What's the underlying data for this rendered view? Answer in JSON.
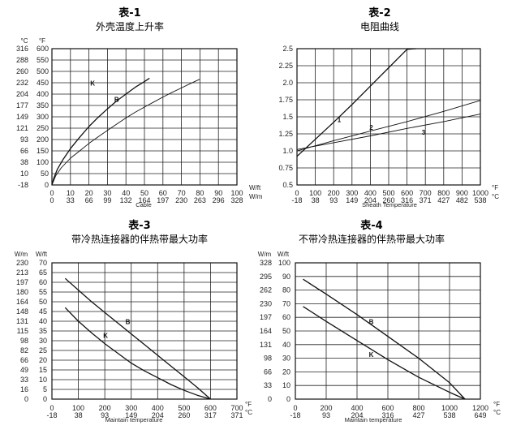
{
  "chart_data": [
    {
      "type": "line",
      "title": "表-1",
      "subtitle": "外壳温度上升率",
      "y_unit_left": "°C",
      "y_unit_right": "°F",
      "y_ticks_left": [
        "316",
        "288",
        "260",
        "232",
        "204",
        "177",
        "149",
        "121",
        "93",
        "66",
        "38",
        "10",
        "-18"
      ],
      "y_ticks_right": [
        "600",
        "550",
        "500",
        "450",
        "400",
        "350",
        "300",
        "250",
        "200",
        "150",
        "100",
        "50",
        "0"
      ],
      "ylim": [
        0,
        600
      ],
      "x_unit_top": "W/ft",
      "x_unit_bottom": "W/m",
      "x_ticks_top": [
        "0",
        "10",
        "20",
        "30",
        "40",
        "50",
        "60",
        "70",
        "80",
        "90",
        "100"
      ],
      "x_ticks_bottom": [
        "0",
        "33",
        "66",
        "99",
        "132",
        "164",
        "197",
        "230",
        "263",
        "296",
        "328"
      ],
      "xlim": [
        0,
        100
      ],
      "xlabel": "Cable",
      "series": [
        {
          "name": "K",
          "x": [
            0,
            1,
            3,
            6,
            10,
            15,
            20,
            25,
            30,
            35,
            40,
            45,
            50,
            52.7
          ],
          "y": [
            0,
            30,
            70,
            112,
            160,
            210,
            257,
            298,
            335,
            370,
            400,
            430,
            455,
            470
          ]
        },
        {
          "name": "B",
          "x": [
            0,
            2,
            5,
            10,
            15,
            20,
            25,
            30,
            35,
            40,
            45,
            50,
            55,
            60,
            65,
            70,
            75,
            79.8
          ],
          "y": [
            0,
            40,
            75,
            118,
            150,
            183,
            212,
            240,
            268,
            295,
            320,
            343,
            365,
            387,
            408,
            427,
            447,
            465
          ]
        }
      ]
    },
    {
      "type": "line",
      "title": "表-2",
      "subtitle": "电阻曲线",
      "y_ticks": [
        "2.5",
        "2.25",
        "2.0",
        "1.75",
        "1.5",
        "1.25",
        "1.0",
        "0.75",
        "0.5"
      ],
      "ylim": [
        0.5,
        2.5
      ],
      "x_unit_top": "°F",
      "x_unit_bottom": "°C",
      "x_ticks_top": [
        "0",
        "100",
        "200",
        "300",
        "400",
        "500",
        "600",
        "700",
        "800",
        "900",
        "1000"
      ],
      "x_ticks_bottom": [
        "-18",
        "38",
        "93",
        "149",
        "204",
        "260",
        "316",
        "371",
        "427",
        "482",
        "538"
      ],
      "xlim": [
        0,
        1000
      ],
      "xlabel": "Sheath Temperature",
      "series": [
        {
          "name": "1",
          "x": [
            0,
            100,
            200,
            300,
            400,
            500,
            600,
            650
          ],
          "y": [
            0.92,
            1.17,
            1.42,
            1.68,
            1.95,
            2.22,
            2.49,
            2.5
          ]
        },
        {
          "name": "2",
          "x": [
            0,
            200,
            400,
            600,
            800,
            1000
          ],
          "y": [
            1.0,
            1.15,
            1.29,
            1.43,
            1.58,
            1.74
          ]
        },
        {
          "name": "3",
          "x": [
            0,
            200,
            400,
            600,
            800,
            1000
          ],
          "y": [
            1.02,
            1.12,
            1.22,
            1.33,
            1.43,
            1.54
          ]
        }
      ]
    },
    {
      "type": "line",
      "title": "表-3",
      "subtitle": "带冷热连接器的伴热带最大功率",
      "y_unit_left": "W/m",
      "y_unit_right": "W/ft",
      "y_ticks_left": [
        "230",
        "213",
        "197",
        "180",
        "164",
        "148",
        "131",
        "115",
        "98",
        "82",
        "66",
        "49",
        "33",
        "16",
        "0"
      ],
      "y_ticks_right": [
        "70",
        "65",
        "60",
        "55",
        "50",
        "45",
        "40",
        "35",
        "30",
        "25",
        "20",
        "15",
        "10",
        "5",
        "0"
      ],
      "ylim": [
        0,
        70
      ],
      "x_unit_top": "°F",
      "x_unit_bottom": "°C",
      "x_ticks_top": [
        "0",
        "100",
        "200",
        "300",
        "400",
        "500",
        "600",
        "700"
      ],
      "x_ticks_bottom": [
        "-18",
        "38",
        "93",
        "149",
        "204",
        "260",
        "317",
        "371"
      ],
      "xlim": [
        0,
        700
      ],
      "xlabel": "Maintain temperature",
      "series": [
        {
          "name": "B",
          "x": [
            50,
            100,
            150,
            200,
            250,
            300,
            350,
            400,
            450,
            500,
            550,
            600
          ],
          "y": [
            62,
            56,
            50,
            44.5,
            39,
            33.5,
            28,
            22.5,
            17,
            11.5,
            6,
            0
          ]
        },
        {
          "name": "K",
          "x": [
            50,
            100,
            150,
            200,
            250,
            300,
            350,
            400,
            450,
            500,
            550,
            600
          ],
          "y": [
            47,
            40,
            34,
            28.5,
            23.5,
            18.5,
            14.5,
            11,
            7.5,
            4.5,
            2,
            0
          ]
        }
      ]
    },
    {
      "type": "line",
      "title": "表-4",
      "subtitle": "不带冷热连接器的伴热带最大功率",
      "y_unit_left": "W/m",
      "y_unit_right": "W/ft",
      "y_ticks_left": [
        "328",
        "295",
        "262",
        "230",
        "197",
        "164",
        "131",
        "98",
        "66",
        "33",
        "0"
      ],
      "y_ticks_right": [
        "100",
        "90",
        "80",
        "70",
        "60",
        "50",
        "40",
        "30",
        "20",
        "10",
        "0"
      ],
      "ylim": [
        0,
        100
      ],
      "x_unit_top": "°F",
      "x_unit_bottom": "°C",
      "x_ticks_top": [
        "0",
        "200",
        "400",
        "600",
        "800",
        "1000",
        "1200"
      ],
      "x_ticks_bottom": [
        "-18",
        "93",
        "204",
        "316",
        "427",
        "538",
        "649"
      ],
      "xlim": [
        0,
        1200
      ],
      "xlabel": "Maintain temperature",
      "series": [
        {
          "name": "B",
          "x": [
            50,
            200,
            400,
            600,
            800,
            1000,
            1100
          ],
          "y": [
            88,
            77,
            62,
            46,
            30,
            12,
            0
          ]
        },
        {
          "name": "K",
          "x": [
            50,
            200,
            400,
            600,
            800,
            1000,
            1100
          ],
          "y": [
            68,
            57,
            43,
            29,
            16,
            5,
            0
          ]
        }
      ]
    }
  ]
}
